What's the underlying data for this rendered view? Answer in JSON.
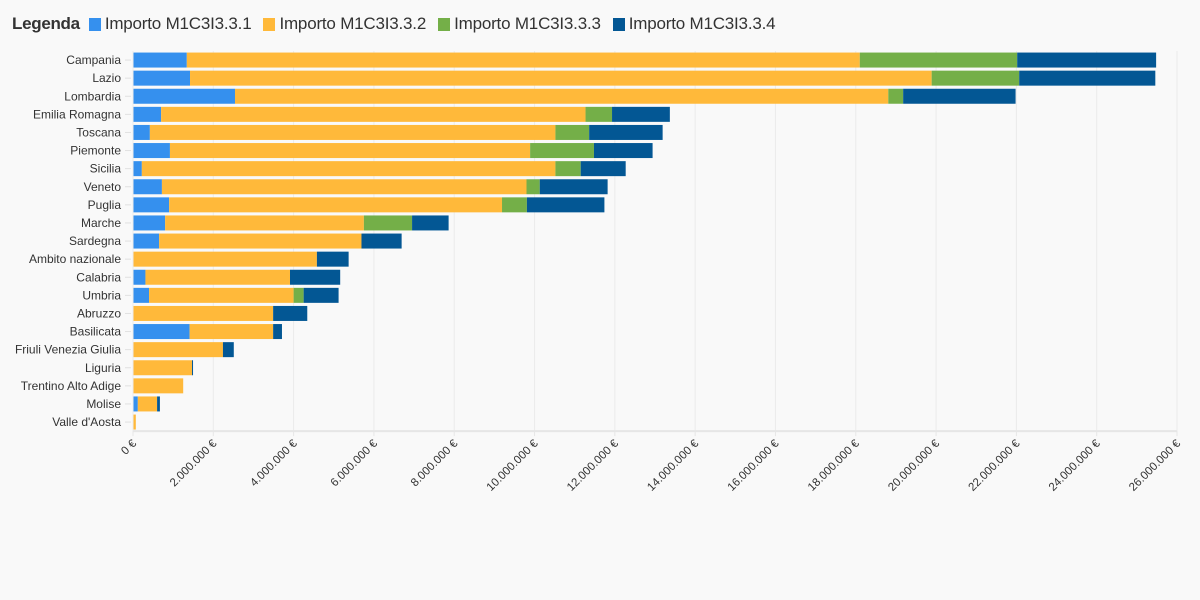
{
  "legend": {
    "title": "Legenda",
    "items": [
      {
        "label": "Importo M1C3I3.3.1",
        "color": "#3590ee"
      },
      {
        "label": "Importo M1C3I3.3.2",
        "color": "#ffb93a"
      },
      {
        "label": "Importo M1C3I3.3.3",
        "color": "#74af48"
      },
      {
        "label": "Importo M1C3I3.3.4",
        "color": "#035794"
      }
    ]
  },
  "chart_data": {
    "type": "bar",
    "orientation": "horizontal",
    "stacked": true,
    "title": "",
    "xlabel": "",
    "ylabel": "",
    "unit": "€",
    "xlim": [
      0,
      26000000
    ],
    "x_ticks": [
      0,
      2000000,
      4000000,
      6000000,
      8000000,
      10000000,
      12000000,
      14000000,
      16000000,
      18000000,
      20000000,
      22000000,
      24000000,
      26000000
    ],
    "x_tick_labels": [
      "0 €",
      "2.000.000 €",
      "4.000.000 €",
      "6.000.000 €",
      "8.000.000 €",
      "10.000.000 €",
      "12.000.000 €",
      "14.000.000 €",
      "16.000.000 €",
      "18.000.000 €",
      "20.000.000 €",
      "22.000.000 €",
      "24.000.000 €",
      "26.000.000 €"
    ],
    "grid": "vertical",
    "legend_position": "top-left",
    "categories": [
      "Campania",
      "Lazio",
      "Lombardia",
      "Emilia Romagna",
      "Toscana",
      "Piemonte",
      "Sicilia",
      "Veneto",
      "Puglia",
      "Marche",
      "Sardegna",
      "Ambito nazionale",
      "Calabria",
      "Umbria",
      "Abruzzo",
      "Basilicata",
      "Friuli Venezia Giulia",
      "Liguria",
      "Trentino Alto Adige",
      "Molise",
      "Valle d'Aosta"
    ],
    "series": [
      {
        "name": "Importo M1C3I3.3.1",
        "color": "#3590ee",
        "values": [
          1340000,
          1420000,
          2540000,
          700000,
          420000,
          920000,
          220000,
          720000,
          900000,
          800000,
          650000,
          0,
          310000,
          400000,
          0,
          1410000,
          0,
          0,
          0,
          120000,
          0
        ]
      },
      {
        "name": "Importo M1C3I3.3.2",
        "color": "#ffb93a",
        "values": [
          16760000,
          18470000,
          16270000,
          10570000,
          10100000,
          8970000,
          10300000,
          9080000,
          8290000,
          4950000,
          5040000,
          4580000,
          3600000,
          3600000,
          3490000,
          2080000,
          2240000,
          1470000,
          1250000,
          480000,
          70000
        ]
      },
      {
        "name": "Importo M1C3I3.3.3",
        "color": "#74af48",
        "values": [
          3920000,
          2180000,
          370000,
          660000,
          840000,
          1590000,
          630000,
          330000,
          620000,
          1200000,
          0,
          0,
          0,
          250000,
          0,
          0,
          0,
          0,
          0,
          0,
          0
        ]
      },
      {
        "name": "Importo M1C3I3.3.4",
        "color": "#035794",
        "values": [
          3460000,
          3390000,
          2800000,
          1440000,
          1830000,
          1460000,
          1120000,
          1690000,
          1930000,
          910000,
          1000000,
          790000,
          1250000,
          870000,
          850000,
          220000,
          270000,
          20000,
          0,
          70000,
          0
        ]
      }
    ]
  }
}
